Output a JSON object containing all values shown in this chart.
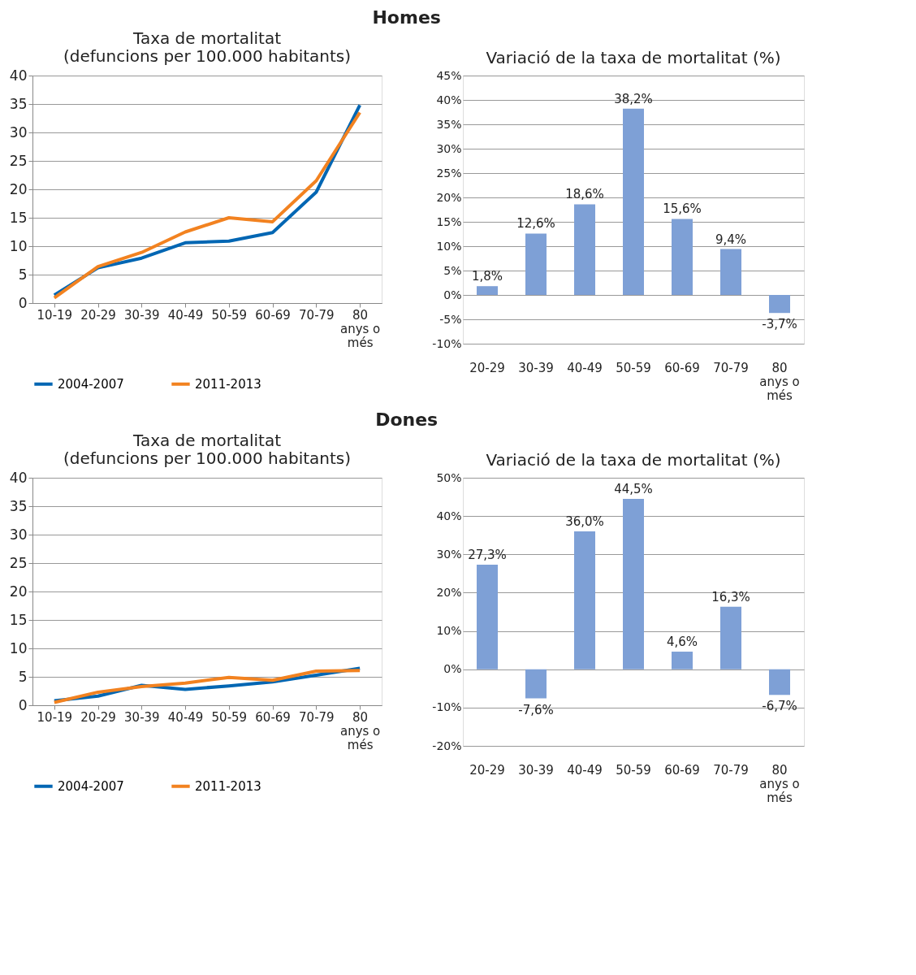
{
  "chart_data": [
    {
      "type": "line",
      "title": "Homes",
      "subtitle": "Taxa de mortalitat\n(defuncions per 100.000 habitants)",
      "categories": [
        "10-19",
        "20-29",
        "30-39",
        "40-49",
        "50-59",
        "60-69",
        "70-79",
        "80 anys o més"
      ],
      "series": [
        {
          "name": "2004-2007",
          "color": "#0066b3",
          "values": [
            1.4,
            6.2,
            7.9,
            10.6,
            10.9,
            12.4,
            19.5,
            34.8
          ]
        },
        {
          "name": "2011-2013",
          "color": "#f28220",
          "values": [
            0.9,
            6.4,
            8.9,
            12.5,
            15.0,
            14.3,
            21.5,
            33.5
          ]
        }
      ],
      "ylim": [
        0,
        40
      ],
      "yticks": [
        0,
        5,
        10,
        15,
        20,
        25,
        30,
        35,
        40
      ],
      "grid": "y",
      "legend": "bottom",
      "marker": "none",
      "line_style": "solid"
    },
    {
      "type": "bar",
      "title": "Variació de la taxa de mortalitat (%)",
      "categories": [
        "20-29",
        "30-39",
        "40-49",
        "50-59",
        "60-69",
        "70-79",
        "80 anys o més"
      ],
      "series": [
        {
          "color": "#7ea0d6",
          "values": [
            1.8,
            12.6,
            18.6,
            38.2,
            15.6,
            9.4,
            -3.7
          ],
          "value_labels": [
            "1,8%",
            "12,6%",
            "18,6%",
            "38,2%",
            "15,6%",
            "9,4%",
            "-3,7%"
          ]
        }
      ],
      "ylim": [
        -10,
        45
      ],
      "yticks": [
        {
          "value": -10,
          "label": "-10%"
        },
        {
          "value": -5,
          "label": "-5%"
        },
        {
          "value": 0,
          "label": "0%"
        },
        {
          "value": 5,
          "label": "5%"
        },
        {
          "value": 10,
          "label": "10%"
        },
        {
          "value": 15,
          "label": "15%"
        },
        {
          "value": 20,
          "label": "20%"
        },
        {
          "value": 25,
          "label": "25%"
        },
        {
          "value": 30,
          "label": "30%"
        },
        {
          "value": 35,
          "label": "35%"
        },
        {
          "value": 40,
          "label": "40%"
        },
        {
          "value": 45,
          "label": "45%"
        }
      ],
      "grid": "y"
    },
    {
      "type": "line",
      "title": "Dones",
      "subtitle": "Taxa de mortalitat\n(defuncions per 100.000 habitants)",
      "categories": [
        "10-19",
        "20-29",
        "30-39",
        "40-49",
        "50-59",
        "60-69",
        "70-79",
        "80 anys o més"
      ],
      "series": [
        {
          "name": "2004-2007",
          "color": "#0066b3",
          "values": [
            0.8,
            1.6,
            3.5,
            2.8,
            3.4,
            4.1,
            5.3,
            6.5
          ]
        },
        {
          "name": "2011-2013",
          "color": "#f28220",
          "values": [
            0.5,
            2.3,
            3.3,
            3.9,
            4.9,
            4.4,
            6.0,
            6.1
          ]
        }
      ],
      "ylim": [
        0,
        40
      ],
      "yticks": [
        0,
        5,
        10,
        15,
        20,
        25,
        30,
        35,
        40
      ],
      "grid": "y",
      "legend": "bottom",
      "marker": "none",
      "line_style": "solid"
    },
    {
      "type": "bar",
      "title": "Variació de la taxa de mortalitat (%)",
      "categories": [
        "20-29",
        "30-39",
        "40-49",
        "50-59",
        "60-69",
        "70-79",
        "80 anys o més"
      ],
      "series": [
        {
          "color": "#7ea0d6",
          "values": [
            27.3,
            -7.6,
            36.0,
            44.5,
            4.6,
            16.3,
            -6.7
          ],
          "value_labels": [
            "27,3%",
            "-7,6%",
            "36,0%",
            "44,5%",
            "4,6%",
            "16,3%",
            "-6,7%"
          ]
        }
      ],
      "ylim": [
        -20,
        50
      ],
      "yticks": [
        {
          "value": -20,
          "label": "-20%"
        },
        {
          "value": -10,
          "label": "-10%"
        },
        {
          "value": 0,
          "label": "0%"
        },
        {
          "value": 10,
          "label": "10%"
        },
        {
          "value": 20,
          "label": "20%"
        },
        {
          "value": 30,
          "label": "30%"
        },
        {
          "value": 40,
          "label": "40%"
        },
        {
          "value": 50,
          "label": "50%"
        }
      ],
      "grid": "y"
    }
  ]
}
